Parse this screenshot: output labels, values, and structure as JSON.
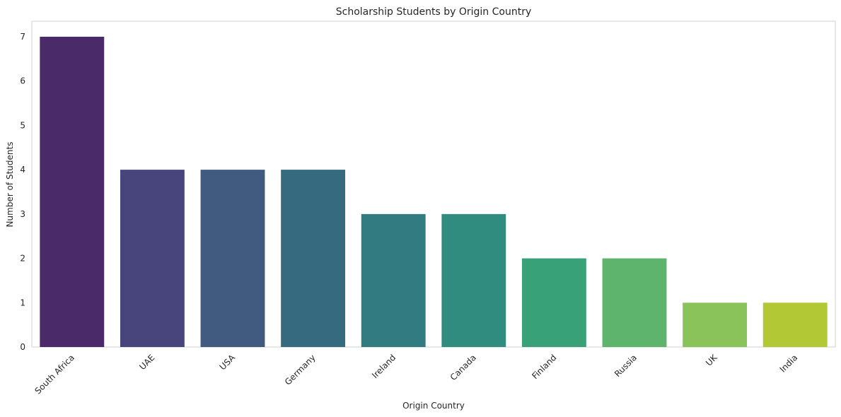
{
  "chart_data": {
    "type": "bar",
    "title": "Scholarship Students by Origin Country",
    "xlabel": "Origin Country",
    "ylabel": "Number of Students",
    "categories": [
      "South Africa",
      "UAE",
      "USA",
      "Germany",
      "Ireland",
      "Canada",
      "Finland",
      "Russia",
      "UK",
      "India"
    ],
    "values": [
      7,
      4,
      4,
      4,
      3,
      3,
      2,
      2,
      1,
      1
    ],
    "colors": [
      "#4a2a68",
      "#47457c",
      "#415b80",
      "#366a7e",
      "#327b80",
      "#2f8c7f",
      "#38a178",
      "#5eb46d",
      "#89c35a",
      "#b2c935"
    ],
    "ylim": [
      0,
      7.35
    ],
    "yticks": [
      0,
      1,
      2,
      3,
      4,
      5,
      6,
      7
    ],
    "grid": false,
    "legend": "none"
  }
}
